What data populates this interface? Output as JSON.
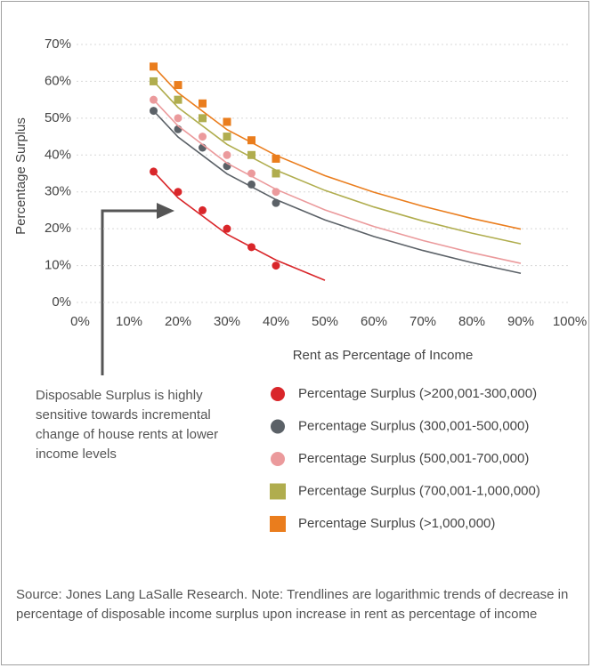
{
  "chart_data": {
    "type": "scatter",
    "xlabel": "Rent as Percentage of Income",
    "ylabel": "Percentage Surplus",
    "xlim": [
      0,
      100
    ],
    "xticks": [
      {
        "value": 0,
        "label": "0%"
      },
      {
        "value": 10,
        "label": "10%"
      },
      {
        "value": 20,
        "label": "20%"
      },
      {
        "value": 30,
        "label": "30%"
      },
      {
        "value": 40,
        "label": "40%"
      },
      {
        "value": 50,
        "label": "50%"
      },
      {
        "value": 60,
        "label": "60%"
      },
      {
        "value": 70,
        "label": "70%"
      },
      {
        "value": 80,
        "label": "80%"
      },
      {
        "value": 90,
        "label": "90%"
      },
      {
        "value": 100,
        "label": "100%"
      }
    ],
    "ylim": [
      0,
      70
    ],
    "yticks": [
      {
        "value": 0,
        "label": "0%"
      },
      {
        "value": 10,
        "label": "10%"
      },
      {
        "value": 20,
        "label": "20%"
      },
      {
        "value": 30,
        "label": "30%"
      },
      {
        "value": 40,
        "label": "40%"
      },
      {
        "value": 50,
        "label": "50%"
      },
      {
        "value": 60,
        "label": "60%"
      },
      {
        "value": 70,
        "label": "70%"
      }
    ],
    "grid": true,
    "annotation": "Disposable Surplus is highly sensitive towards incremental change of house rents at lower income levels",
    "source": "Source: Jones Lang LaSalle Research. Note: Trendlines are logarithmic trends of decrease in percentage of disposable income surplus upon increase in rent as percentage of income",
    "series": [
      {
        "name": "Percentage Surplus (>200,001-300,000)",
        "color": "#d9262a",
        "marker": "circle",
        "x": [
          15,
          20,
          25,
          30,
          35,
          40
        ],
        "values": [
          35.5,
          30,
          25,
          20,
          15,
          10
        ],
        "trendline": {
          "x": [
            15,
            20,
            30,
            40,
            50
          ],
          "values": [
            35.5,
            28.4,
            18.5,
            11.5,
            6
          ]
        }
      },
      {
        "name": "Percentage Surplus (300,001-500,000)",
        "color": "#5b6167",
        "marker": "circle",
        "x": [
          15,
          20,
          25,
          30,
          35,
          40
        ],
        "values": [
          52,
          47,
          42,
          37,
          32,
          27
        ],
        "trendline": {
          "x": [
            15,
            20,
            30,
            40,
            50,
            60,
            70,
            80,
            90
          ],
          "values": [
            52,
            44.9,
            34.9,
            27.9,
            22.4,
            17.9,
            14.1,
            10.8,
            7.9
          ]
        }
      },
      {
        "name": "Percentage Surplus (500,001-700,000)",
        "color": "#eb9a9c",
        "marker": "circle",
        "x": [
          15,
          20,
          25,
          30,
          35,
          40
        ],
        "values": [
          55,
          50,
          45,
          40,
          35,
          30
        ],
        "trendline": {
          "x": [
            15,
            20,
            30,
            40,
            50,
            60,
            70,
            80,
            90
          ],
          "values": [
            55,
            47.9,
            37.8,
            30.7,
            25.1,
            20.6,
            16.8,
            13.5,
            10.6
          ]
        }
      },
      {
        "name": "Percentage Surplus (700,001-1,000,000)",
        "color": "#b0ad4e",
        "marker": "square",
        "x": [
          15,
          20,
          25,
          30,
          35,
          40
        ],
        "values": [
          60,
          55,
          50,
          45,
          40,
          35
        ],
        "trendline": {
          "x": [
            15,
            20,
            30,
            40,
            50,
            60,
            70,
            80,
            90
          ],
          "values": [
            60,
            52.9,
            42.9,
            35.9,
            30.4,
            25.9,
            22.1,
            18.8,
            15.9
          ]
        }
      },
      {
        "name": "Percentage Surplus (>1,000,000)",
        "color": "#ea7d1d",
        "marker": "square",
        "x": [
          15,
          20,
          25,
          30,
          35,
          40
        ],
        "values": [
          64,
          59,
          54,
          49,
          44,
          39
        ],
        "trendline": {
          "x": [
            15,
            20,
            30,
            40,
            50,
            60,
            70,
            80,
            90
          ],
          "values": [
            64,
            56.9,
            46.9,
            39.9,
            34.4,
            29.9,
            26.1,
            22.8,
            19.9
          ]
        }
      }
    ]
  }
}
